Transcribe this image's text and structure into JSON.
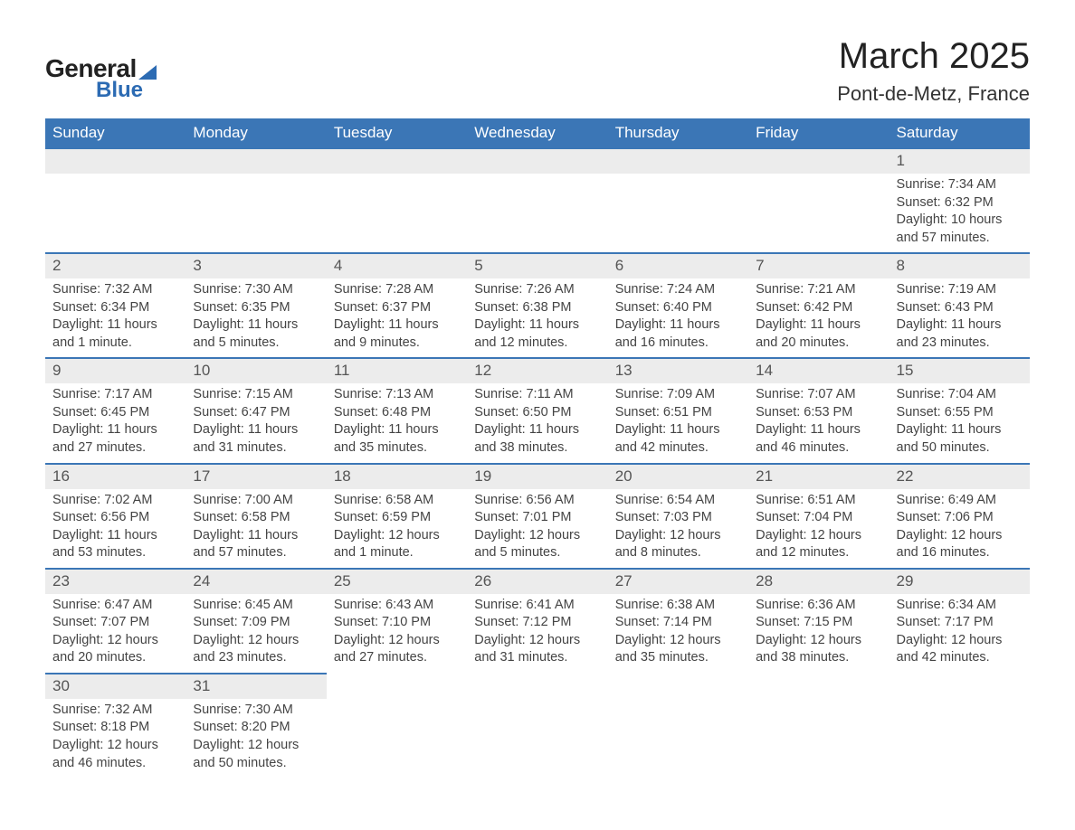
{
  "logo": {
    "word1": "General",
    "word2": "Blue"
  },
  "title": "March 2025",
  "location": "Pont-de-Metz, France",
  "colors": {
    "header_bg": "#3b76b6",
    "header_text": "#ffffff",
    "daynum_bg": "#ececec",
    "row_border": "#3b76b6",
    "body_text": "#444444",
    "logo_blue": "#2c6bb3"
  },
  "weekdays": [
    "Sunday",
    "Monday",
    "Tuesday",
    "Wednesday",
    "Thursday",
    "Friday",
    "Saturday"
  ],
  "weeks": [
    [
      null,
      null,
      null,
      null,
      null,
      null,
      {
        "n": "1",
        "sr": "Sunrise: 7:34 AM",
        "ss": "Sunset: 6:32 PM",
        "d1": "Daylight: 10 hours",
        "d2": "and 57 minutes."
      }
    ],
    [
      {
        "n": "2",
        "sr": "Sunrise: 7:32 AM",
        "ss": "Sunset: 6:34 PM",
        "d1": "Daylight: 11 hours",
        "d2": "and 1 minute."
      },
      {
        "n": "3",
        "sr": "Sunrise: 7:30 AM",
        "ss": "Sunset: 6:35 PM",
        "d1": "Daylight: 11 hours",
        "d2": "and 5 minutes."
      },
      {
        "n": "4",
        "sr": "Sunrise: 7:28 AM",
        "ss": "Sunset: 6:37 PM",
        "d1": "Daylight: 11 hours",
        "d2": "and 9 minutes."
      },
      {
        "n": "5",
        "sr": "Sunrise: 7:26 AM",
        "ss": "Sunset: 6:38 PM",
        "d1": "Daylight: 11 hours",
        "d2": "and 12 minutes."
      },
      {
        "n": "6",
        "sr": "Sunrise: 7:24 AM",
        "ss": "Sunset: 6:40 PM",
        "d1": "Daylight: 11 hours",
        "d2": "and 16 minutes."
      },
      {
        "n": "7",
        "sr": "Sunrise: 7:21 AM",
        "ss": "Sunset: 6:42 PM",
        "d1": "Daylight: 11 hours",
        "d2": "and 20 minutes."
      },
      {
        "n": "8",
        "sr": "Sunrise: 7:19 AM",
        "ss": "Sunset: 6:43 PM",
        "d1": "Daylight: 11 hours",
        "d2": "and 23 minutes."
      }
    ],
    [
      {
        "n": "9",
        "sr": "Sunrise: 7:17 AM",
        "ss": "Sunset: 6:45 PM",
        "d1": "Daylight: 11 hours",
        "d2": "and 27 minutes."
      },
      {
        "n": "10",
        "sr": "Sunrise: 7:15 AM",
        "ss": "Sunset: 6:47 PM",
        "d1": "Daylight: 11 hours",
        "d2": "and 31 minutes."
      },
      {
        "n": "11",
        "sr": "Sunrise: 7:13 AM",
        "ss": "Sunset: 6:48 PM",
        "d1": "Daylight: 11 hours",
        "d2": "and 35 minutes."
      },
      {
        "n": "12",
        "sr": "Sunrise: 7:11 AM",
        "ss": "Sunset: 6:50 PM",
        "d1": "Daylight: 11 hours",
        "d2": "and 38 minutes."
      },
      {
        "n": "13",
        "sr": "Sunrise: 7:09 AM",
        "ss": "Sunset: 6:51 PM",
        "d1": "Daylight: 11 hours",
        "d2": "and 42 minutes."
      },
      {
        "n": "14",
        "sr": "Sunrise: 7:07 AM",
        "ss": "Sunset: 6:53 PM",
        "d1": "Daylight: 11 hours",
        "d2": "and 46 minutes."
      },
      {
        "n": "15",
        "sr": "Sunrise: 7:04 AM",
        "ss": "Sunset: 6:55 PM",
        "d1": "Daylight: 11 hours",
        "d2": "and 50 minutes."
      }
    ],
    [
      {
        "n": "16",
        "sr": "Sunrise: 7:02 AM",
        "ss": "Sunset: 6:56 PM",
        "d1": "Daylight: 11 hours",
        "d2": "and 53 minutes."
      },
      {
        "n": "17",
        "sr": "Sunrise: 7:00 AM",
        "ss": "Sunset: 6:58 PM",
        "d1": "Daylight: 11 hours",
        "d2": "and 57 minutes."
      },
      {
        "n": "18",
        "sr": "Sunrise: 6:58 AM",
        "ss": "Sunset: 6:59 PM",
        "d1": "Daylight: 12 hours",
        "d2": "and 1 minute."
      },
      {
        "n": "19",
        "sr": "Sunrise: 6:56 AM",
        "ss": "Sunset: 7:01 PM",
        "d1": "Daylight: 12 hours",
        "d2": "and 5 minutes."
      },
      {
        "n": "20",
        "sr": "Sunrise: 6:54 AM",
        "ss": "Sunset: 7:03 PM",
        "d1": "Daylight: 12 hours",
        "d2": "and 8 minutes."
      },
      {
        "n": "21",
        "sr": "Sunrise: 6:51 AM",
        "ss": "Sunset: 7:04 PM",
        "d1": "Daylight: 12 hours",
        "d2": "and 12 minutes."
      },
      {
        "n": "22",
        "sr": "Sunrise: 6:49 AM",
        "ss": "Sunset: 7:06 PM",
        "d1": "Daylight: 12 hours",
        "d2": "and 16 minutes."
      }
    ],
    [
      {
        "n": "23",
        "sr": "Sunrise: 6:47 AM",
        "ss": "Sunset: 7:07 PM",
        "d1": "Daylight: 12 hours",
        "d2": "and 20 minutes."
      },
      {
        "n": "24",
        "sr": "Sunrise: 6:45 AM",
        "ss": "Sunset: 7:09 PM",
        "d1": "Daylight: 12 hours",
        "d2": "and 23 minutes."
      },
      {
        "n": "25",
        "sr": "Sunrise: 6:43 AM",
        "ss": "Sunset: 7:10 PM",
        "d1": "Daylight: 12 hours",
        "d2": "and 27 minutes."
      },
      {
        "n": "26",
        "sr": "Sunrise: 6:41 AM",
        "ss": "Sunset: 7:12 PM",
        "d1": "Daylight: 12 hours",
        "d2": "and 31 minutes."
      },
      {
        "n": "27",
        "sr": "Sunrise: 6:38 AM",
        "ss": "Sunset: 7:14 PM",
        "d1": "Daylight: 12 hours",
        "d2": "and 35 minutes."
      },
      {
        "n": "28",
        "sr": "Sunrise: 6:36 AM",
        "ss": "Sunset: 7:15 PM",
        "d1": "Daylight: 12 hours",
        "d2": "and 38 minutes."
      },
      {
        "n": "29",
        "sr": "Sunrise: 6:34 AM",
        "ss": "Sunset: 7:17 PM",
        "d1": "Daylight: 12 hours",
        "d2": "and 42 minutes."
      }
    ],
    [
      {
        "n": "30",
        "sr": "Sunrise: 7:32 AM",
        "ss": "Sunset: 8:18 PM",
        "d1": "Daylight: 12 hours",
        "d2": "and 46 minutes."
      },
      {
        "n": "31",
        "sr": "Sunrise: 7:30 AM",
        "ss": "Sunset: 8:20 PM",
        "d1": "Daylight: 12 hours",
        "d2": "and 50 minutes."
      },
      null,
      null,
      null,
      null,
      null
    ]
  ]
}
